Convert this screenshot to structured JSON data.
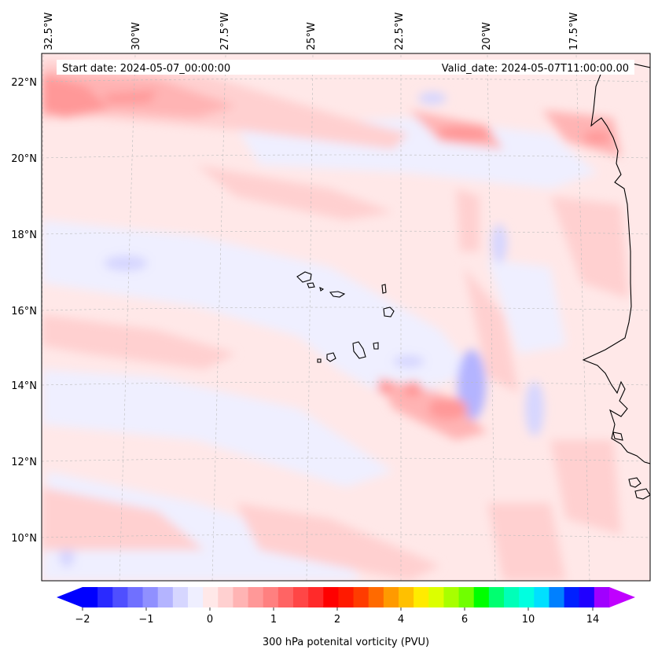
{
  "header": {
    "start_date": "Start date: 2024-05-07_00:00:00",
    "valid_date": "Valid_date: 2024-05-07T11:00:00.00"
  },
  "lon_labels": [
    "32.5°W",
    "30°W",
    "27.5°W",
    "25°W",
    "22.5°W",
    "20°W",
    "17.5°W"
  ],
  "lat_labels": [
    "22°N",
    "20°N",
    "18°N",
    "16°N",
    "14°N",
    "12°N",
    "10°N"
  ],
  "colorbar": {
    "label": "300 hPa potenital vorticity (PVU)",
    "tick_labels": [
      "−2",
      "−1",
      "0",
      "1",
      "2",
      "4",
      "6",
      "10",
      "14"
    ],
    "colors": [
      "#0000ff",
      "#2a2aff",
      "#4f4fff",
      "#7070ff",
      "#9090ff",
      "#b4b4ff",
      "#d6d6ff",
      "#efefff",
      "#ffe8e8",
      "#ffd0d0",
      "#ffb4b4",
      "#ff9898",
      "#ff8080",
      "#ff6464",
      "#ff4646",
      "#ff2a2a",
      "#ff0000",
      "#ff1a00",
      "#ff3c00",
      "#ff6a00",
      "#ff9a00",
      "#ffc000",
      "#ffeb00",
      "#dcff00",
      "#a8ff00",
      "#70ff00",
      "#00ff00",
      "#00ff70",
      "#00ffb8",
      "#00ffe0",
      "#00e0ff",
      "#0080ff",
      "#0020ff",
      "#2000ff",
      "#a000ff"
    ],
    "extend_min_color": "#0000ff",
    "extend_max_color": "#c000ff"
  }
}
